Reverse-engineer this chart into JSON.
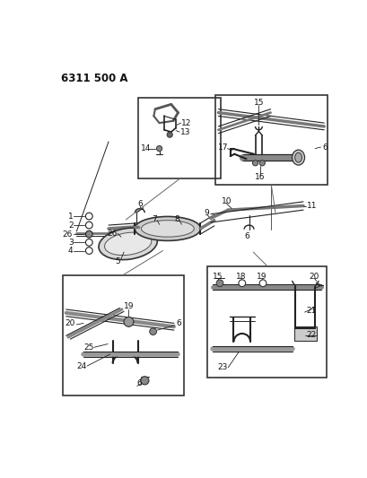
{
  "title": "6311 500 A",
  "bg_color": "#ffffff",
  "line_color": "#222222",
  "text_color": "#111111",
  "title_fontsize": 8.5,
  "label_fontsize": 6.5,
  "boxes": {
    "tl": [
      0.315,
      0.755,
      0.185,
      0.195
    ],
    "tr": [
      0.59,
      0.74,
      0.22,
      0.205
    ],
    "bl": [
      0.058,
      0.215,
      0.295,
      0.26
    ],
    "br": [
      0.555,
      0.185,
      0.28,
      0.27
    ]
  }
}
